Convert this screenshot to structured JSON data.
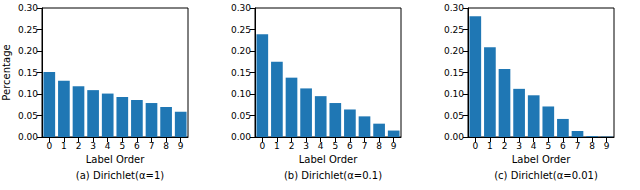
{
  "chart_data": [
    {
      "type": "bar",
      "title": "(a) Dirichlet(α=1)",
      "xlabel": "Label Order",
      "ylabel": "Percentage",
      "categories": [
        "0",
        "1",
        "2",
        "3",
        "4",
        "5",
        "6",
        "7",
        "8",
        "9"
      ],
      "values": [
        0.151,
        0.131,
        0.118,
        0.109,
        0.101,
        0.093,
        0.086,
        0.079,
        0.07,
        0.059
      ],
      "color": "#1f77b4",
      "ylim": [
        0,
        0.3
      ],
      "yticks": [
        {
          "value": 0,
          "label": "0.00"
        },
        {
          "value": 0.05,
          "label": "0.05"
        },
        {
          "value": 0.1,
          "label": "0.10"
        },
        {
          "value": 0.15,
          "label": "0.15"
        },
        {
          "value": 0.2,
          "label": "0.20"
        },
        {
          "value": 0.25,
          "label": "0.25"
        },
        {
          "value": 0.3,
          "label": "0.30"
        }
      ],
      "grid": false
    },
    {
      "type": "bar",
      "title": "(b) Dirichlet(α=0.1)",
      "xlabel": "Label Order",
      "categories": [
        "0",
        "1",
        "2",
        "3",
        "4",
        "5",
        "6",
        "7",
        "8",
        "9"
      ],
      "values": [
        0.239,
        0.175,
        0.138,
        0.113,
        0.095,
        0.079,
        0.064,
        0.048,
        0.031,
        0.015
      ],
      "color": "#1f77b4",
      "ylim": [
        0,
        0.3
      ],
      "yticks": [
        {
          "value": 0,
          "label": "0.00"
        },
        {
          "value": 0.05,
          "label": "0.05"
        },
        {
          "value": 0.1,
          "label": "0.10"
        },
        {
          "value": 0.15,
          "label": "0.15"
        },
        {
          "value": 0.2,
          "label": "0.20"
        },
        {
          "value": 0.25,
          "label": "0.25"
        },
        {
          "value": 0.3,
          "label": "0.30"
        }
      ],
      "grid": false
    },
    {
      "type": "bar",
      "title": "(c) Dirichlet(α=0.01)",
      "xlabel": "Label Order",
      "categories": [
        "0",
        "1",
        "2",
        "3",
        "4",
        "5",
        "6",
        "7",
        "8",
        "9"
      ],
      "values": [
        0.281,
        0.209,
        0.158,
        0.112,
        0.097,
        0.071,
        0.042,
        0.014,
        0.002,
        0.001
      ],
      "color": "#1f77b4",
      "ylim": [
        0,
        0.3
      ],
      "yticks": [
        {
          "value": 0,
          "label": "0.00"
        },
        {
          "value": 0.05,
          "label": "0.05"
        },
        {
          "value": 0.1,
          "label": "0.10"
        },
        {
          "value": 0.15,
          "label": "0.15"
        },
        {
          "value": 0.2,
          "label": "0.20"
        },
        {
          "value": 0.25,
          "label": "0.25"
        },
        {
          "value": 0.3,
          "label": "0.30"
        }
      ],
      "grid": false
    }
  ]
}
